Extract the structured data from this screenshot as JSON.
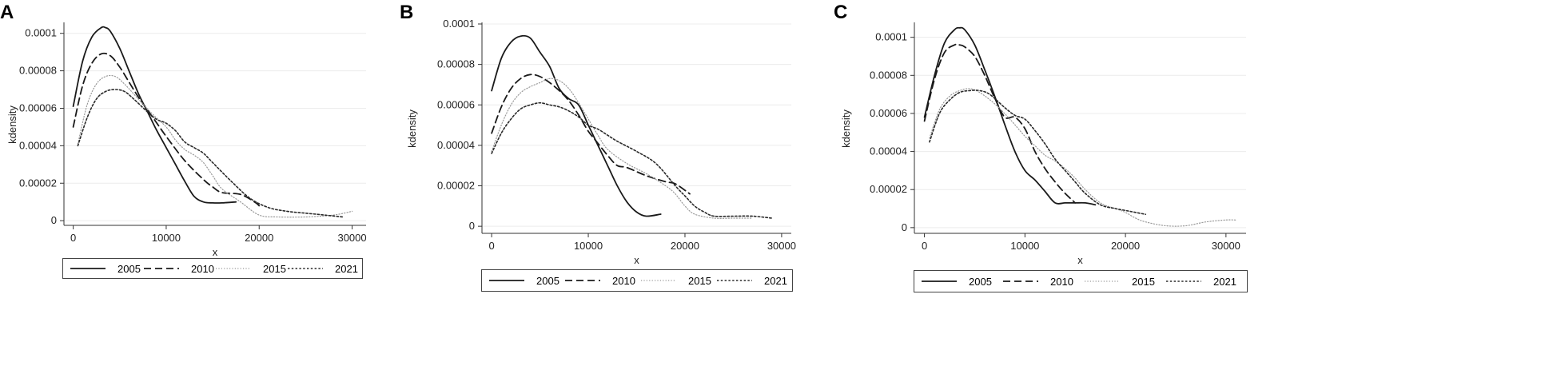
{
  "chart_data": [
    {
      "type": "line",
      "panel": "A",
      "xlabel": "x",
      "ylabel": "kdensity",
      "xlim": [
        -1000,
        31500
      ],
      "ylim": [
        -2.5e-06,
        0.000105
      ],
      "x_ticks": [
        0,
        10000,
        20000,
        30000
      ],
      "x_tick_labels": [
        "0",
        "10000",
        "20000",
        "30000"
      ],
      "y_ticks": [
        0,
        2e-05,
        4e-05,
        6e-05,
        8e-05,
        0.0001
      ],
      "y_tick_labels": [
        "0",
        "0.00002",
        "0.00004",
        "0.00006",
        "0.00008",
        "0.0001"
      ],
      "legend_position": "bottom",
      "series": [
        {
          "name": "2005",
          "x": [
            0,
            1000,
            2000,
            3000,
            3500,
            4000,
            5000,
            6000,
            7000,
            8000,
            9000,
            10000,
            11000,
            12000,
            13000,
            14000,
            15000,
            16000,
            17500
          ],
          "y": [
            6.1e-05,
            8.5e-05,
            9.8e-05,
            0.000103,
            0.000103,
            0.000101,
            9.2e-05,
            8e-05,
            6.8e-05,
            5.8e-05,
            4.8e-05,
            3.9e-05,
            3e-05,
            2.1e-05,
            1.3e-05,
            1e-05,
            9.5e-06,
            9.5e-06,
            1e-05
          ]
        },
        {
          "name": "2010",
          "x": [
            0,
            1000,
            2000,
            3000,
            4000,
            5000,
            6000,
            7000,
            8000,
            9000,
            10000,
            12000,
            14000,
            15000,
            16000,
            18000,
            19500,
            20000
          ],
          "y": [
            5e-05,
            7.2e-05,
            8.4e-05,
            8.9e-05,
            8.8e-05,
            8.2e-05,
            7.4e-05,
            6.6e-05,
            5.9e-05,
            5.2e-05,
            4.5e-05,
            3.2e-05,
            2.2e-05,
            1.8e-05,
            1.5e-05,
            1.4e-05,
            1e-05,
            8e-06
          ]
        },
        {
          "name": "2015",
          "x": [
            500,
            1500,
            2500,
            3500,
            4500,
            5500,
            7000,
            8500,
            10000,
            11000,
            12000,
            13000,
            14000,
            15000,
            16000,
            18000,
            20000,
            22000,
            25000,
            28000,
            30000
          ],
          "y": [
            4.1e-05,
            6.2e-05,
            7.3e-05,
            7.7e-05,
            7.7e-05,
            7.3e-05,
            6.5e-05,
            5.7e-05,
            5e-05,
            4.3e-05,
            3.8e-05,
            3.5e-05,
            3.1e-05,
            2.4e-05,
            1.7e-05,
            1e-05,
            3e-06,
            2e-06,
            2e-06,
            3e-06,
            5e-06
          ]
        },
        {
          "name": "2021",
          "x": [
            500,
            1500,
            2500,
            3500,
            4500,
            5500,
            6500,
            8000,
            9000,
            10000,
            11000,
            12000,
            13000,
            14000,
            15000,
            17000,
            19000,
            21000,
            23000,
            25000,
            27000,
            29000
          ],
          "y": [
            4e-05,
            5.5e-05,
            6.5e-05,
            6.9e-05,
            7e-05,
            6.9e-05,
            6.5e-05,
            5.8e-05,
            5.4e-05,
            5.2e-05,
            4.8e-05,
            4.2e-05,
            3.9e-05,
            3.6e-05,
            3.1e-05,
            2.1e-05,
            1.2e-05,
            7e-06,
            5e-06,
            4e-06,
            3e-06,
            2e-06
          ]
        }
      ]
    },
    {
      "type": "line",
      "panel": "B",
      "xlabel": "x",
      "ylabel": "kdensity",
      "xlim": [
        -1000,
        31000
      ],
      "ylim": [
        -3.5e-06,
        0.0001
      ],
      "x_ticks": [
        0,
        10000,
        20000,
        30000
      ],
      "x_tick_labels": [
        "0",
        "10000",
        "20000",
        "30000"
      ],
      "y_ticks": [
        0,
        2e-05,
        4e-05,
        6e-05,
        8e-05,
        0.0001
      ],
      "y_tick_labels": [
        "0",
        "0.00002",
        "0.00004",
        "0.00006",
        "0.00008",
        "0.0001"
      ],
      "legend_position": "bottom",
      "series": [
        {
          "name": "2005",
          "x": [
            0,
            1000,
            2000,
            3000,
            4000,
            5000,
            6000,
            7000,
            8000,
            9000,
            10000,
            11000,
            12000,
            13000,
            14000,
            15000,
            16000,
            17500
          ],
          "y": [
            6.7e-05,
            8.3e-05,
            9.1e-05,
            9.4e-05,
            9.3e-05,
            8.6e-05,
            7.9e-05,
            6.8e-05,
            6.3e-05,
            6e-05,
            5e-05,
            4e-05,
            3e-05,
            2e-05,
            1.2e-05,
            7e-06,
            5e-06,
            6e-06
          ]
        },
        {
          "name": "2010",
          "x": [
            0,
            1000,
            2000,
            3000,
            4000,
            5000,
            6000,
            7000,
            8000,
            9000,
            10000,
            11000,
            12000,
            13000,
            14000,
            16000,
            18000,
            19000,
            20500
          ],
          "y": [
            4.6e-05,
            5.9e-05,
            6.8e-05,
            7.3e-05,
            7.5e-05,
            7.4e-05,
            7.1e-05,
            6.7e-05,
            6.2e-05,
            5.5e-05,
            4.7e-05,
            4.1e-05,
            3.5e-05,
            3e-05,
            2.9e-05,
            2.5e-05,
            2.2e-05,
            2.1e-05,
            1.6e-05
          ]
        },
        {
          "name": "2015",
          "x": [
            0,
            1000,
            2000,
            3000,
            4000,
            5000,
            6000,
            7000,
            8000,
            9000,
            10000,
            11000,
            12000,
            14000,
            16000,
            18000,
            19000,
            20000,
            21000,
            23000,
            25000,
            27000
          ],
          "y": [
            3.7e-05,
            5e-05,
            6e-05,
            6.6e-05,
            6.9e-05,
            7.1e-05,
            7.3e-05,
            7.2e-05,
            6.8e-05,
            6.1e-05,
            5.3e-05,
            4.5e-05,
            3.8e-05,
            3.1e-05,
            2.6e-05,
            2e-05,
            1.6e-05,
            1e-05,
            6e-06,
            4e-06,
            4e-06,
            4e-06
          ]
        },
        {
          "name": "2021",
          "x": [
            0,
            1000,
            2000,
            3000,
            4000,
            5000,
            6000,
            7000,
            8000,
            9000,
            10000,
            11000,
            12000,
            13000,
            15000,
            17000,
            19000,
            20000,
            21000,
            22000,
            23000,
            25000,
            27000,
            29000
          ],
          "y": [
            3.6e-05,
            4.6e-05,
            5.3e-05,
            5.8e-05,
            6e-05,
            6.1e-05,
            6e-05,
            5.9e-05,
            5.7e-05,
            5.4e-05,
            5e-05,
            4.8e-05,
            4.5e-05,
            4.2e-05,
            3.7e-05,
            3.1e-05,
            2e-05,
            1.5e-05,
            1e-05,
            7e-06,
            5e-06,
            5e-06,
            5e-06,
            4e-06
          ]
        }
      ]
    },
    {
      "type": "line",
      "panel": "C",
      "xlabel": "x",
      "ylabel": "kdensity",
      "xlim": [
        -1000,
        32000
      ],
      "ylim": [
        -3e-06,
        0.000107
      ],
      "x_ticks": [
        0,
        10000,
        20000,
        30000
      ],
      "x_tick_labels": [
        "0",
        "10000",
        "20000",
        "30000"
      ],
      "y_ticks": [
        0,
        2e-05,
        4e-05,
        6e-05,
        8e-05,
        0.0001
      ],
      "y_tick_labels": [
        "0",
        "0.00002",
        "0.00004",
        "0.00006",
        "0.00008",
        "0.0001"
      ],
      "legend_position": "bottom",
      "series": [
        {
          "name": "2005",
          "x": [
            0,
            1000,
            2000,
            3000,
            3500,
            4000,
            5000,
            6000,
            7000,
            8000,
            9000,
            10000,
            11000,
            12000,
            13000,
            14000,
            15000,
            16000,
            17000
          ],
          "y": [
            5.8e-05,
            8e-05,
            9.7e-05,
            0.000104,
            0.000105,
            0.000104,
            9.6e-05,
            8.3e-05,
            6.9e-05,
            5.4e-05,
            4e-05,
            3e-05,
            2.5e-05,
            1.9e-05,
            1.3e-05,
            1.3e-05,
            1.3e-05,
            1.3e-05,
            1.2e-05
          ]
        },
        {
          "name": "2010",
          "x": [
            0,
            1000,
            2000,
            3000,
            3500,
            4000,
            5000,
            6000,
            7000,
            8000,
            9000,
            10000,
            11000,
            12000,
            13000,
            14000,
            15000
          ],
          "y": [
            5.6e-05,
            7.8e-05,
            9.2e-05,
            9.6e-05,
            9.6e-05,
            9.5e-05,
            9e-05,
            8e-05,
            6.8e-05,
            5.8e-05,
            5.8e-05,
            5.2e-05,
            4e-05,
            3.1e-05,
            2.4e-05,
            1.8e-05,
            1.3e-05
          ]
        },
        {
          "name": "2015",
          "x": [
            500,
            1500,
            2500,
            3500,
            4500,
            5500,
            7000,
            8500,
            10000,
            11000,
            12000,
            13000,
            14000,
            15000,
            16000,
            17500,
            19000,
            20000,
            21000,
            22000,
            24000,
            26000,
            28000,
            30000,
            31000
          ],
          "y": [
            4.7e-05,
            6.2e-05,
            6.9e-05,
            7.2e-05,
            7.3e-05,
            7.1e-05,
            6.5e-05,
            5.7e-05,
            4.8e-05,
            4.3e-05,
            3.8e-05,
            3.5e-05,
            3.1e-05,
            2.6e-05,
            2e-05,
            1.3e-05,
            1e-05,
            8e-06,
            5e-06,
            3e-06,
            1e-06,
            1e-06,
            3e-06,
            4e-06,
            4e-06
          ]
        },
        {
          "name": "2021",
          "x": [
            500,
            1500,
            2500,
            3500,
            4500,
            5500,
            6500,
            8000,
            9000,
            10000,
            11000,
            12000,
            13000,
            14000,
            15000,
            16000,
            17500,
            19000,
            20000,
            21000,
            22000
          ],
          "y": [
            4.5e-05,
            6e-05,
            6.7e-05,
            7.1e-05,
            7.2e-05,
            7.2e-05,
            7e-05,
            6.3e-05,
            5.9e-05,
            5.7e-05,
            5.1e-05,
            4.4e-05,
            3.6e-05,
            3e-05,
            2.4e-05,
            1.8e-05,
            1.2e-05,
            1e-05,
            9e-06,
            8e-06,
            7e-06
          ]
        }
      ]
    }
  ],
  "panels": [
    {
      "letter": "A",
      "legend": [
        "2005",
        "2010",
        "2015",
        "2021"
      ]
    },
    {
      "letter": "B",
      "legend": [
        "2005",
        "2010",
        "2015",
        "2021"
      ]
    },
    {
      "letter": "C",
      "legend": [
        "2005",
        "2010",
        "2015",
        "2021"
      ]
    }
  ],
  "series_styles": {
    "2005": {
      "dash": "solid",
      "color": "#1a1a1a",
      "width": 1.8
    },
    "2010": {
      "dash": "dashed",
      "color": "#1a1a1a",
      "width": 1.8
    },
    "2015": {
      "dash": "dotted-light",
      "color": "#9a9a9a",
      "width": 1.2
    },
    "2021": {
      "dash": "dotted",
      "color": "#2a2a2a",
      "width": 1.6
    }
  }
}
